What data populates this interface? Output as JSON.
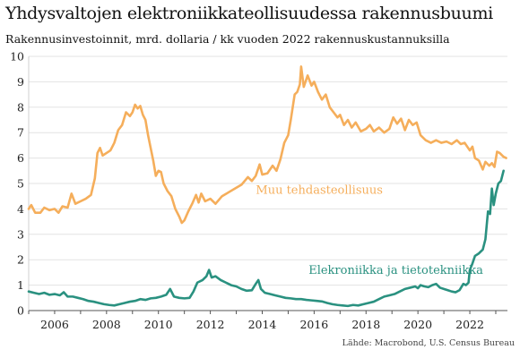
{
  "chart_data": {
    "type": "line",
    "title": "Yhdysvaltojen elektroniikkateollisuudessa rakennusbuumi",
    "subtitle": "Rakennusinvestoinnit, mrd. dollaria / kk vuoden 2022 rakennuskustannuksilla",
    "source": "Lähde: Macrobond, U.S. Census Bureau",
    "xlim": [
      2005.0,
      2023.45
    ],
    "ylim": [
      0,
      10
    ],
    "x_ticks": [
      {
        "value": 2006,
        "label": "2006"
      },
      {
        "value": 2008,
        "label": "2008"
      },
      {
        "value": 2010,
        "label": "2010"
      },
      {
        "value": 2012,
        "label": "2012"
      },
      {
        "value": 2014,
        "label": "2014"
      },
      {
        "value": 2016,
        "label": "2016"
      },
      {
        "value": 2018,
        "label": "2018"
      },
      {
        "value": 2020,
        "label": "2020"
      },
      {
        "value": 2022,
        "label": "2022"
      }
    ],
    "y_ticks": [
      {
        "value": 0,
        "label": "0"
      },
      {
        "value": 1,
        "label": "1"
      },
      {
        "value": 2,
        "label": "2"
      },
      {
        "value": 3,
        "label": "3"
      },
      {
        "value": 4,
        "label": "4"
      },
      {
        "value": 5,
        "label": "5"
      },
      {
        "value": 6,
        "label": "6"
      },
      {
        "value": 7,
        "label": "7"
      },
      {
        "value": 8,
        "label": "8"
      },
      {
        "value": 9,
        "label": "9"
      },
      {
        "value": 10,
        "label": "10"
      }
    ],
    "grid": {
      "horizontal": true,
      "vertical": false
    },
    "series": [
      {
        "name": "Muu tehdasteollisuus",
        "color": "#f5ae5b",
        "points": [
          [
            2005.0,
            4.0
          ],
          [
            2005.1,
            4.15
          ],
          [
            2005.25,
            3.85
          ],
          [
            2005.45,
            3.85
          ],
          [
            2005.6,
            4.05
          ],
          [
            2005.8,
            3.95
          ],
          [
            2006.0,
            4.0
          ],
          [
            2006.15,
            3.85
          ],
          [
            2006.3,
            4.1
          ],
          [
            2006.5,
            4.05
          ],
          [
            2006.65,
            4.6
          ],
          [
            2006.8,
            4.2
          ],
          [
            2007.0,
            4.3
          ],
          [
            2007.2,
            4.4
          ],
          [
            2007.4,
            4.55
          ],
          [
            2007.55,
            5.2
          ],
          [
            2007.65,
            6.2
          ],
          [
            2007.75,
            6.4
          ],
          [
            2007.85,
            6.1
          ],
          [
            2008.0,
            6.2
          ],
          [
            2008.15,
            6.3
          ],
          [
            2008.3,
            6.6
          ],
          [
            2008.45,
            7.1
          ],
          [
            2008.6,
            7.3
          ],
          [
            2008.75,
            7.8
          ],
          [
            2008.9,
            7.65
          ],
          [
            2009.0,
            7.8
          ],
          [
            2009.1,
            8.1
          ],
          [
            2009.2,
            7.95
          ],
          [
            2009.3,
            8.05
          ],
          [
            2009.4,
            7.7
          ],
          [
            2009.5,
            7.5
          ],
          [
            2009.6,
            6.9
          ],
          [
            2009.7,
            6.4
          ],
          [
            2009.8,
            5.9
          ],
          [
            2009.9,
            5.3
          ],
          [
            2010.0,
            5.5
          ],
          [
            2010.1,
            5.45
          ],
          [
            2010.2,
            5.0
          ],
          [
            2010.35,
            4.7
          ],
          [
            2010.5,
            4.5
          ],
          [
            2010.65,
            4.0
          ],
          [
            2010.8,
            3.7
          ],
          [
            2010.9,
            3.45
          ],
          [
            2011.0,
            3.55
          ],
          [
            2011.15,
            3.9
          ],
          [
            2011.3,
            4.2
          ],
          [
            2011.45,
            4.55
          ],
          [
            2011.55,
            4.25
          ],
          [
            2011.65,
            4.6
          ],
          [
            2011.8,
            4.3
          ],
          [
            2012.0,
            4.4
          ],
          [
            2012.2,
            4.2
          ],
          [
            2012.45,
            4.5
          ],
          [
            2012.7,
            4.65
          ],
          [
            2012.95,
            4.8
          ],
          [
            2013.2,
            4.95
          ],
          [
            2013.45,
            5.25
          ],
          [
            2013.6,
            5.1
          ],
          [
            2013.75,
            5.3
          ],
          [
            2013.9,
            5.75
          ],
          [
            2014.0,
            5.35
          ],
          [
            2014.2,
            5.4
          ],
          [
            2014.4,
            5.7
          ],
          [
            2014.55,
            5.5
          ],
          [
            2014.7,
            5.95
          ],
          [
            2014.85,
            6.6
          ],
          [
            2015.0,
            6.9
          ],
          [
            2015.1,
            7.5
          ],
          [
            2015.25,
            8.5
          ],
          [
            2015.35,
            8.6
          ],
          [
            2015.45,
            8.9
          ],
          [
            2015.5,
            9.6
          ],
          [
            2015.6,
            8.8
          ],
          [
            2015.75,
            9.25
          ],
          [
            2015.9,
            8.85
          ],
          [
            2016.0,
            9.0
          ],
          [
            2016.15,
            8.6
          ],
          [
            2016.3,
            8.3
          ],
          [
            2016.45,
            8.5
          ],
          [
            2016.6,
            8.0
          ],
          [
            2016.75,
            7.8
          ],
          [
            2016.9,
            7.6
          ],
          [
            2017.0,
            7.7
          ],
          [
            2017.15,
            7.3
          ],
          [
            2017.3,
            7.5
          ],
          [
            2017.45,
            7.2
          ],
          [
            2017.6,
            7.4
          ],
          [
            2017.8,
            7.05
          ],
          [
            2018.0,
            7.15
          ],
          [
            2018.15,
            7.3
          ],
          [
            2018.3,
            7.05
          ],
          [
            2018.5,
            7.2
          ],
          [
            2018.7,
            7.0
          ],
          [
            2018.9,
            7.15
          ],
          [
            2019.05,
            7.6
          ],
          [
            2019.2,
            7.35
          ],
          [
            2019.35,
            7.55
          ],
          [
            2019.5,
            7.1
          ],
          [
            2019.65,
            7.5
          ],
          [
            2019.8,
            7.3
          ],
          [
            2019.95,
            7.4
          ],
          [
            2020.1,
            6.9
          ],
          [
            2020.3,
            6.7
          ],
          [
            2020.5,
            6.6
          ],
          [
            2020.7,
            6.7
          ],
          [
            2020.9,
            6.6
          ],
          [
            2021.1,
            6.65
          ],
          [
            2021.3,
            6.55
          ],
          [
            2021.5,
            6.7
          ],
          [
            2021.65,
            6.55
          ],
          [
            2021.8,
            6.6
          ],
          [
            2022.0,
            6.3
          ],
          [
            2022.1,
            6.45
          ],
          [
            2022.2,
            6.0
          ],
          [
            2022.35,
            5.9
          ],
          [
            2022.5,
            5.55
          ],
          [
            2022.6,
            5.85
          ],
          [
            2022.75,
            5.7
          ],
          [
            2022.85,
            5.8
          ],
          [
            2022.95,
            5.65
          ],
          [
            2023.05,
            6.25
          ],
          [
            2023.15,
            6.2
          ],
          [
            2023.3,
            6.05
          ],
          [
            2023.4,
            6.0
          ]
        ]
      },
      {
        "name": "Elekroniikka ja tietotekniikka",
        "color": "#2a9180",
        "points": [
          [
            2005.0,
            0.75
          ],
          [
            2005.2,
            0.7
          ],
          [
            2005.4,
            0.65
          ],
          [
            2005.6,
            0.7
          ],
          [
            2005.8,
            0.62
          ],
          [
            2006.0,
            0.65
          ],
          [
            2006.2,
            0.6
          ],
          [
            2006.35,
            0.72
          ],
          [
            2006.5,
            0.55
          ],
          [
            2006.7,
            0.55
          ],
          [
            2006.9,
            0.5
          ],
          [
            2007.1,
            0.45
          ],
          [
            2007.3,
            0.38
          ],
          [
            2007.5,
            0.35
          ],
          [
            2007.7,
            0.3
          ],
          [
            2007.9,
            0.25
          ],
          [
            2008.1,
            0.22
          ],
          [
            2008.3,
            0.2
          ],
          [
            2008.5,
            0.25
          ],
          [
            2008.7,
            0.3
          ],
          [
            2008.9,
            0.35
          ],
          [
            2009.1,
            0.38
          ],
          [
            2009.3,
            0.45
          ],
          [
            2009.5,
            0.42
          ],
          [
            2009.7,
            0.48
          ],
          [
            2009.9,
            0.5
          ],
          [
            2010.1,
            0.55
          ],
          [
            2010.3,
            0.62
          ],
          [
            2010.45,
            0.85
          ],
          [
            2010.6,
            0.55
          ],
          [
            2010.8,
            0.5
          ],
          [
            2011.0,
            0.48
          ],
          [
            2011.2,
            0.5
          ],
          [
            2011.35,
            0.75
          ],
          [
            2011.5,
            1.1
          ],
          [
            2011.7,
            1.2
          ],
          [
            2011.85,
            1.35
          ],
          [
            2011.95,
            1.6
          ],
          [
            2012.05,
            1.3
          ],
          [
            2012.2,
            1.35
          ],
          [
            2012.4,
            1.2
          ],
          [
            2012.6,
            1.1
          ],
          [
            2012.8,
            1.0
          ],
          [
            2013.0,
            0.95
          ],
          [
            2013.2,
            0.85
          ],
          [
            2013.4,
            0.78
          ],
          [
            2013.6,
            0.8
          ],
          [
            2013.75,
            1.05
          ],
          [
            2013.85,
            1.2
          ],
          [
            2013.95,
            0.85
          ],
          [
            2014.1,
            0.7
          ],
          [
            2014.3,
            0.65
          ],
          [
            2014.5,
            0.6
          ],
          [
            2014.7,
            0.55
          ],
          [
            2014.9,
            0.5
          ],
          [
            2015.1,
            0.48
          ],
          [
            2015.3,
            0.45
          ],
          [
            2015.5,
            0.45
          ],
          [
            2015.7,
            0.42
          ],
          [
            2015.9,
            0.4
          ],
          [
            2016.1,
            0.38
          ],
          [
            2016.3,
            0.36
          ],
          [
            2016.5,
            0.3
          ],
          [
            2016.7,
            0.25
          ],
          [
            2016.9,
            0.22
          ],
          [
            2017.1,
            0.2
          ],
          [
            2017.3,
            0.18
          ],
          [
            2017.5,
            0.22
          ],
          [
            2017.7,
            0.2
          ],
          [
            2017.9,
            0.25
          ],
          [
            2018.1,
            0.3
          ],
          [
            2018.3,
            0.35
          ],
          [
            2018.5,
            0.45
          ],
          [
            2018.7,
            0.55
          ],
          [
            2018.9,
            0.6
          ],
          [
            2019.1,
            0.65
          ],
          [
            2019.3,
            0.75
          ],
          [
            2019.5,
            0.85
          ],
          [
            2019.7,
            0.9
          ],
          [
            2019.9,
            0.95
          ],
          [
            2020.0,
            0.88
          ],
          [
            2020.1,
            1.0
          ],
          [
            2020.25,
            0.95
          ],
          [
            2020.4,
            0.92
          ],
          [
            2020.55,
            1.0
          ],
          [
            2020.7,
            1.05
          ],
          [
            2020.85,
            0.9
          ],
          [
            2021.0,
            0.85
          ],
          [
            2021.15,
            0.8
          ],
          [
            2021.3,
            0.75
          ],
          [
            2021.45,
            0.72
          ],
          [
            2021.6,
            0.8
          ],
          [
            2021.75,
            1.05
          ],
          [
            2021.85,
            1.0
          ],
          [
            2021.95,
            1.1
          ],
          [
            2022.0,
            1.6
          ],
          [
            2022.1,
            1.85
          ],
          [
            2022.2,
            2.15
          ],
          [
            2022.35,
            2.25
          ],
          [
            2022.5,
            2.4
          ],
          [
            2022.6,
            2.8
          ],
          [
            2022.7,
            3.9
          ],
          [
            2022.78,
            3.8
          ],
          [
            2022.85,
            4.8
          ],
          [
            2022.92,
            4.15
          ],
          [
            2023.0,
            4.6
          ],
          [
            2023.1,
            5.0
          ],
          [
            2023.2,
            5.1
          ],
          [
            2023.3,
            5.5
          ]
        ]
      }
    ],
    "series_labels": [
      {
        "text": "Muu tehdasteollisuus",
        "x": 2016.2,
        "y": 4.6
      },
      {
        "text": "Elekroniikka ja tietotekniikka",
        "x": 2019.15,
        "y": 1.45
      }
    ]
  }
}
